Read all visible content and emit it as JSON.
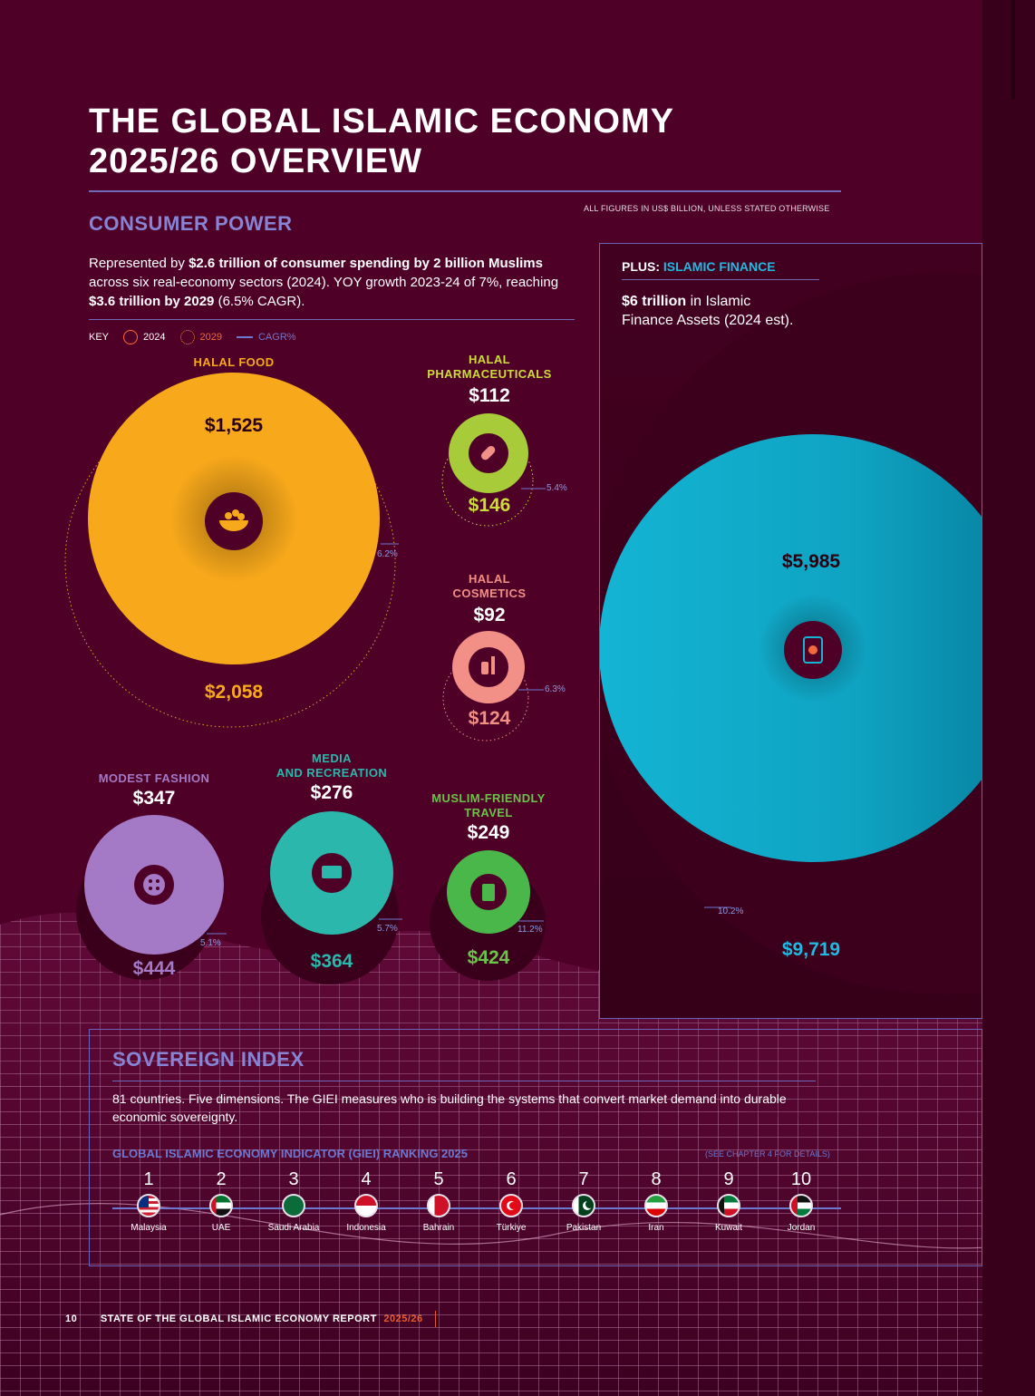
{
  "header": {
    "title_line1": "THE GLOBAL ISLAMIC ECONOMY",
    "title_line2": "2025/26 OVERVIEW",
    "units_note": "ALL FIGURES IN US$ BILLION, UNLESS STATED OTHERWISE"
  },
  "consumer": {
    "heading": "CONSUMER POWER",
    "intro": {
      "p1": "Represented by ",
      "b1": "$2.6 trillion of consumer spending by 2 billion Muslims",
      "p2": " across six real-economy sectors (2024). YOY growth 2023-24 of 7%, reaching ",
      "b2": "$3.6 trillion by 2029",
      "p3": " (6.5% CAGR)."
    },
    "key": {
      "label": "KEY",
      "y2024": "2024",
      "y2029": "2029",
      "cagr": "CAGR%"
    }
  },
  "sectors": [
    {
      "name": "HALAL FOOD",
      "v2024": "$1,525",
      "v2029": "$2,058",
      "cagr": "6.2%",
      "color": "#f7a81b",
      "icon": "food-bowl-icon"
    },
    {
      "name_l1": "HALAL",
      "name_l2": "PHARMACEUTICALS",
      "v2024": "$112",
      "v2029": "$146",
      "cagr": "5.4%",
      "color": "#a8cb3a",
      "icon": "pill-icon"
    },
    {
      "name_l1": "HALAL",
      "name_l2": "COSMETICS",
      "v2024": "$92",
      "v2029": "$124",
      "cagr": "6.3%",
      "color": "#f28f86",
      "icon": "cosmetics-icon"
    },
    {
      "name": "MODEST FASHION",
      "v2024": "$347",
      "v2029": "$444",
      "cagr": "5.1%",
      "color": "#a479c6",
      "icon": "button-icon"
    },
    {
      "name_l1": "MEDIA",
      "name_l2": "AND RECREATION",
      "v2024": "$276",
      "v2029": "$364",
      "cagr": "5.7%",
      "color": "#2bb7ab",
      "icon": "screen-icon"
    },
    {
      "name_l1": "MUSLIM-FRIENDLY",
      "name_l2": "TRAVEL",
      "v2024": "$249",
      "v2029": "$424",
      "cagr": "11.2%",
      "color": "#49b74a",
      "icon": "luggage-icon"
    }
  ],
  "finance": {
    "plus": "PLUS: ",
    "heading": "ISLAMIC FINANCE",
    "text_bold": "$6 trillion",
    "text_rest": " in Islamic Finance Assets (2024 est).",
    "v2024": "$5,985",
    "v2029": "$9,719",
    "cagr": "10.2%",
    "color": "#14b4d4",
    "icon": "mobile-payment-icon"
  },
  "sovereign": {
    "heading": "SOVEREIGN INDEX",
    "text": "81 countries. Five dimensions. The GIEI measures who is building the systems that convert market demand into durable economic sovereignty.",
    "ranking_title": "GLOBAL ISLAMIC ECONOMY INDICATOR (GIEI) RANKING 2025",
    "see_note": "(SEE CHAPTER 4 FOR DETAILS)",
    "countries": [
      {
        "rank": "1",
        "name": "Malaysia"
      },
      {
        "rank": "2",
        "name": "UAE"
      },
      {
        "rank": "3",
        "name": "Saudi Arabia"
      },
      {
        "rank": "4",
        "name": "Indonesia"
      },
      {
        "rank": "5",
        "name": "Bahrain"
      },
      {
        "rank": "6",
        "name": "Türkiye"
      },
      {
        "rank": "7",
        "name": "Pakistan"
      },
      {
        "rank": "8",
        "name": "Iran"
      },
      {
        "rank": "9",
        "name": "Kuwait"
      },
      {
        "rank": "10",
        "name": "Jordan"
      }
    ]
  },
  "footer": {
    "page": "10",
    "report": "STATE OF THE GLOBAL ISLAMIC ECONOMY REPORT",
    "edition": "2025/26"
  }
}
